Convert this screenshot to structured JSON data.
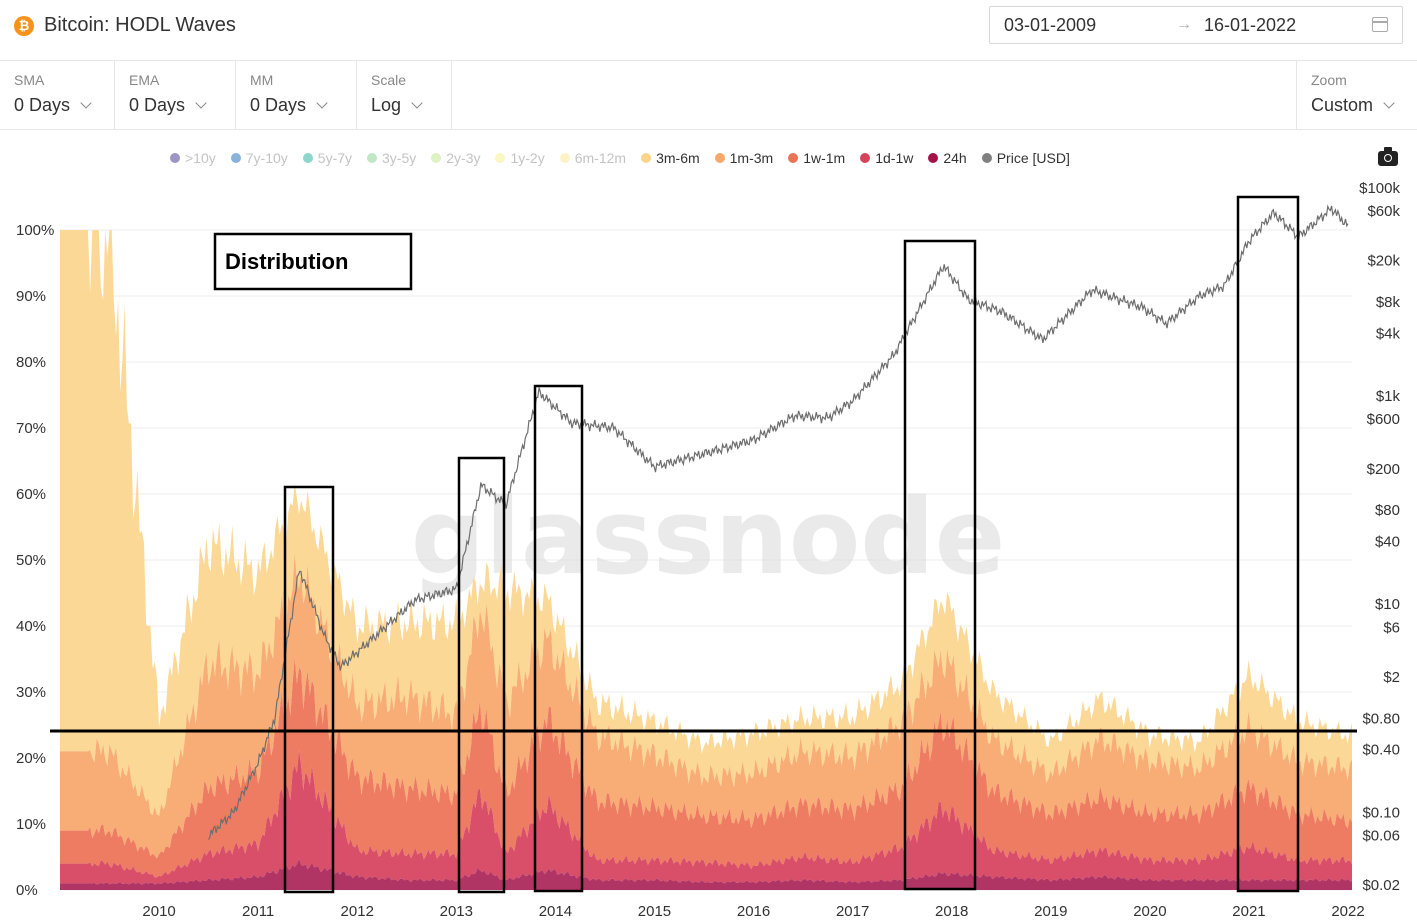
{
  "header": {
    "logo_glyph": "₿",
    "title": "Bitcoin: HODL Waves",
    "date_start": "03-01-2009",
    "date_arrow": "→",
    "date_end": "16-01-2022",
    "calendar_icon": "calendar-icon"
  },
  "controls": {
    "sma": {
      "label": "SMA",
      "value": "0 Days"
    },
    "ema": {
      "label": "EMA",
      "value": "0 Days"
    },
    "mm": {
      "label": "MM",
      "value": "0 Days"
    },
    "scale": {
      "label": "Scale",
      "value": "Log"
    },
    "zoom": {
      "label": "Zoom",
      "value": "Custom"
    }
  },
  "legend": [
    {
      "label": ">10y",
      "color": "#5b4f9c",
      "active": false
    },
    {
      "label": "7y-10y",
      "color": "#3a7ec0",
      "active": false
    },
    {
      "label": "5y-7y",
      "color": "#3fbaa8",
      "active": false
    },
    {
      "label": "3y-5y",
      "color": "#97d8a0",
      "active": false
    },
    {
      "label": "2y-3y",
      "color": "#c8e89a",
      "active": false
    },
    {
      "label": "1y-2y",
      "color": "#f7f29b",
      "active": false
    },
    {
      "label": "6m-12m",
      "color": "#fde9a2",
      "active": false
    },
    {
      "label": "3m-6m",
      "color": "#fcd48a",
      "active": true
    },
    {
      "label": "1m-3m",
      "color": "#f8a86a",
      "active": true
    },
    {
      "label": "1w-1m",
      "color": "#ee7356",
      "active": true
    },
    {
      "label": "1d-1w",
      "color": "#d6435b",
      "active": true
    },
    {
      "label": "24h",
      "color": "#a3134a",
      "active": true
    },
    {
      "label": "Price [USD]",
      "color": "#808080",
      "active": true
    }
  ],
  "camera_icon": "camera-icon",
  "watermark": "glassnode",
  "annotation": {
    "label": "Distribution"
  },
  "chart_data": {
    "type": "area",
    "stacked": true,
    "x": [
      "2009-07",
      "2010-01",
      "2010-07",
      "2011-01",
      "2011-06",
      "2012-01",
      "2012-07",
      "2013-01",
      "2013-04",
      "2013-07",
      "2013-12",
      "2014-06",
      "2015-01",
      "2015-07",
      "2016-01",
      "2016-07",
      "2017-01",
      "2017-07",
      "2017-12",
      "2018-06",
      "2019-01",
      "2019-07",
      "2020-01",
      "2020-07",
      "2021-01",
      "2021-07",
      "2022-01"
    ],
    "series": [
      {
        "name": "24h",
        "values": [
          1.0,
          1.0,
          1.5,
          2.0,
          4.0,
          2.0,
          1.5,
          1.5,
          3.0,
          1.5,
          3.0,
          1.5,
          1.5,
          1.2,
          1.2,
          1.5,
          1.2,
          1.5,
          2.5,
          2.0,
          1.5,
          2.0,
          1.5,
          1.5,
          1.5,
          1.5,
          1.5
        ]
      },
      {
        "name": "1d-1w",
        "values": [
          3.0,
          1.0,
          4.0,
          5.0,
          15.0,
          4.0,
          4.0,
          4.0,
          12.0,
          4.0,
          10.0,
          3.0,
          3.0,
          3.0,
          2.5,
          3.5,
          3.0,
          5.0,
          10.0,
          4.0,
          3.0,
          4.0,
          3.0,
          3.0,
          5.0,
          3.0,
          3.0
        ]
      },
      {
        "name": "1w-1m",
        "values": [
          5.0,
          3.0,
          10.0,
          11.0,
          14.0,
          11.0,
          10.0,
          9.0,
          13.0,
          9.0,
          13.0,
          9.0,
          8.0,
          7.0,
          7.0,
          8.0,
          8.0,
          9.0,
          13.0,
          9.0,
          7.0,
          8.0,
          7.0,
          7.0,
          9.0,
          7.0,
          6.0
        ]
      },
      {
        "name": "1m-3m",
        "values": [
          12.0,
          6.0,
          19.0,
          15.0,
          15.0,
          11.0,
          14.0,
          12.0,
          15.0,
          14.0,
          12.0,
          10.0,
          8.0,
          6.0,
          7.0,
          8.0,
          8.0,
          10.0,
          10.0,
          8.0,
          6.0,
          9.0,
          8.0,
          7.0,
          9.0,
          8.0,
          8.0
        ]
      },
      {
        "name": "3m-6m",
        "values": [
          79.0,
          15.0,
          18.0,
          15.0,
          12.0,
          12.0,
          11.0,
          14.0,
          4.0,
          17.0,
          6.0,
          5.0,
          5.0,
          5.0,
          6.0,
          5.0,
          6.0,
          6.0,
          9.0,
          7.0,
          5.0,
          6.0,
          4.0,
          4.0,
          8.0,
          6.0,
          5.0
        ]
      }
    ],
    "price": {
      "name": "Price [USD]",
      "x": [
        "2010-07",
        "2010-10",
        "2011-01",
        "2011-03",
        "2011-06",
        "2011-09",
        "2011-11",
        "2012-03",
        "2012-08",
        "2013-01",
        "2013-04",
        "2013-07",
        "2013-11",
        "2014-03",
        "2014-08",
        "2015-01",
        "2015-07",
        "2016-01",
        "2016-06",
        "2016-10",
        "2017-01",
        "2017-06",
        "2017-12",
        "2018-03",
        "2018-07",
        "2018-12",
        "2019-06",
        "2019-12",
        "2020-03",
        "2020-07",
        "2020-10",
        "2021-01",
        "2021-04",
        "2021-07",
        "2021-11",
        "2022-01"
      ],
      "values": [
        0.06,
        0.1,
        0.3,
        0.8,
        22,
        5,
        2.5,
        4.8,
        11,
        14,
        140,
        90,
        1100,
        550,
        500,
        210,
        280,
        380,
        650,
        620,
        900,
        2500,
        18000,
        8500,
        6500,
        3500,
        10500,
        7200,
        5000,
        9200,
        11500,
        31000,
        58000,
        34000,
        64000,
        43000
      ]
    },
    "y_left_ticks": [
      "0%",
      "10%",
      "20%",
      "30%",
      "40%",
      "50%",
      "60%",
      "70%",
      "80%",
      "90%",
      "100%"
    ],
    "y_right_ticks": [
      "$0.02",
      "$0.06",
      "$0.10",
      "$0.40",
      "$0.80",
      "$2",
      "$6",
      "$10",
      "$40",
      "$80",
      "$200",
      "$600",
      "$1k",
      "$4k",
      "$8k",
      "$20k",
      "$60k",
      "$100k"
    ],
    "x_ticks": [
      "2010",
      "2011",
      "2012",
      "2013",
      "2014",
      "2015",
      "2016",
      "2017",
      "2018",
      "2019",
      "2020",
      "2021",
      "2022"
    ],
    "ylim": [
      0,
      100
    ],
    "y_right_scale": "log",
    "grid": true
  }
}
